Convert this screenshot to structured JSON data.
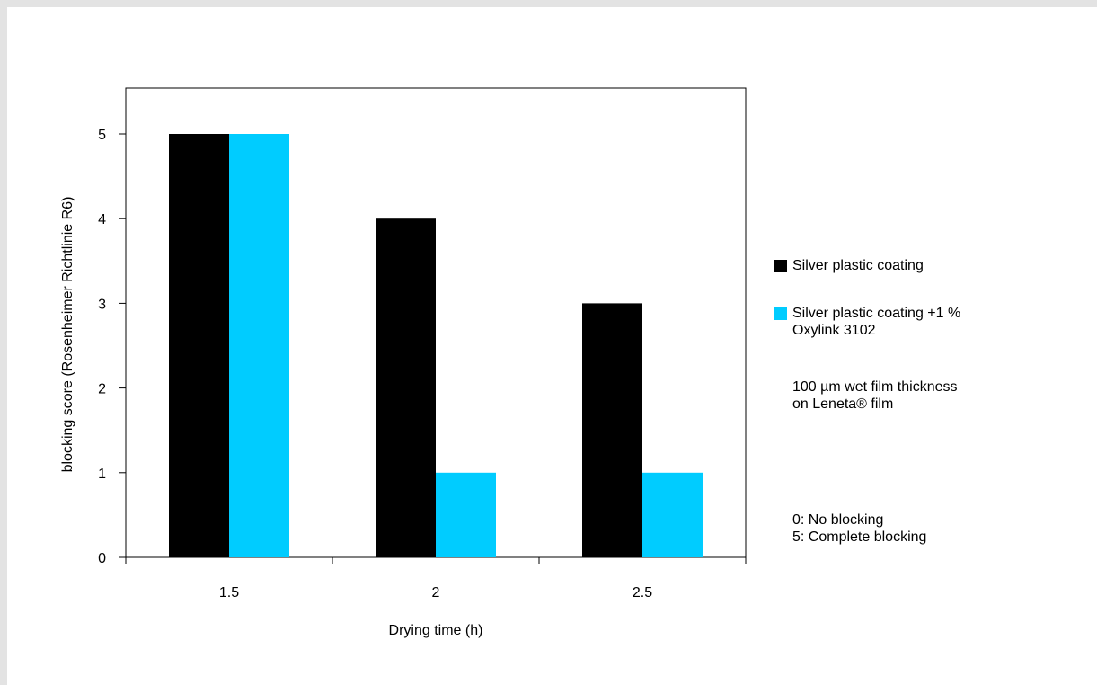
{
  "chart_data": {
    "type": "bar",
    "categories": [
      "1.5",
      "2",
      "2.5"
    ],
    "series": [
      {
        "name": "Silver plastic coating",
        "values": [
          5,
          4,
          3
        ],
        "color": "#000000"
      },
      {
        "name": "Silver plastic coating +1 %\nOxylink 3102",
        "values": [
          5,
          1,
          1
        ],
        "color": "#00ccff"
      }
    ],
    "xlabel": "Drying time (h)",
    "ylabel": "blocking score (Rosenheimer Richtlinie R6)",
    "ylim": [
      0,
      5
    ],
    "yticks": [
      "0",
      "1",
      "2",
      "3",
      "4",
      "5"
    ],
    "grid": false,
    "legend_position": "right"
  },
  "notes": {
    "film": "100 µm wet film thickness\non Leneta® film",
    "scale": "0: No blocking\n5: Complete blocking"
  }
}
